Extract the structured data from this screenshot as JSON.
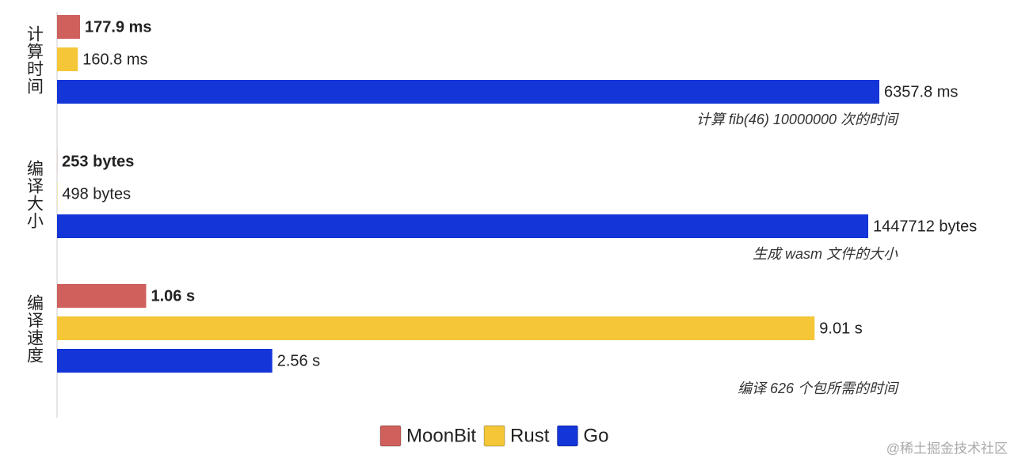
{
  "chart_data": {
    "type": "bar",
    "orientation": "horizontal",
    "series": [
      {
        "name": "MoonBit",
        "color": "#d0605b"
      },
      {
        "name": "Rust",
        "color": "#f4c638"
      },
      {
        "name": "Go",
        "color": "#1435d8"
      }
    ],
    "groups": [
      {
        "label": "计算时间",
        "note": "计算 fib(46) 10000000 次的时间",
        "values": [
          177.9,
          160.8,
          6357.8
        ],
        "value_labels": [
          "177.9 ms",
          "160.8 ms",
          "6357.8 ms"
        ],
        "xlim": [
          0,
          6357.8
        ]
      },
      {
        "label": "编译大小",
        "note": "生成 wasm 文件的大小",
        "values": [
          253,
          498,
          1447712
        ],
        "value_labels": [
          "253 bytes",
          "498 bytes",
          "1447712 bytes"
        ],
        "xlim": [
          0,
          1467500
        ]
      },
      {
        "label": "编译速度",
        "note": "编译 626 个包所需的时间",
        "values": [
          1.06,
          9.01,
          2.56
        ],
        "value_labels": [
          "1.06 s",
          "9.01 s",
          "2.56 s"
        ],
        "xlim": [
          0,
          9.78
        ]
      }
    ]
  },
  "watermark": "@稀土掘金技术社区"
}
